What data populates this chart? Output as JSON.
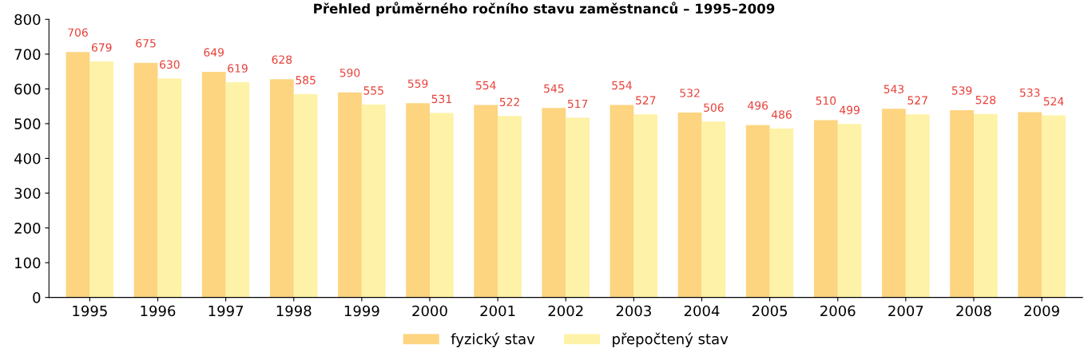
{
  "chart_data": {
    "type": "bar",
    "title": "Přehled průměrného ročního stavu zaměstnanců – 1995–2009",
    "categories": [
      "1995",
      "1996",
      "1997",
      "1998",
      "1999",
      "2000",
      "2001",
      "2002",
      "2003",
      "2004",
      "2005",
      "2006",
      "2007",
      "2008",
      "2009"
    ],
    "series": [
      {
        "name": "fyzický stav",
        "color": "#fdd480",
        "values": [
          706,
          675,
          649,
          628,
          590,
          559,
          554,
          545,
          554,
          532,
          496,
          510,
          543,
          539,
          533
        ]
      },
      {
        "name": "přepočtený stav",
        "color": "#fef2a8",
        "values": [
          679,
          630,
          619,
          585,
          555,
          531,
          522,
          517,
          527,
          506,
          486,
          499,
          527,
          528,
          524
        ]
      }
    ],
    "ylim": [
      0,
      800
    ],
    "yticks": [
      0,
      100,
      200,
      300,
      400,
      500,
      600,
      700,
      800
    ],
    "grid": false,
    "legend": "bottom",
    "data_labels": true
  }
}
